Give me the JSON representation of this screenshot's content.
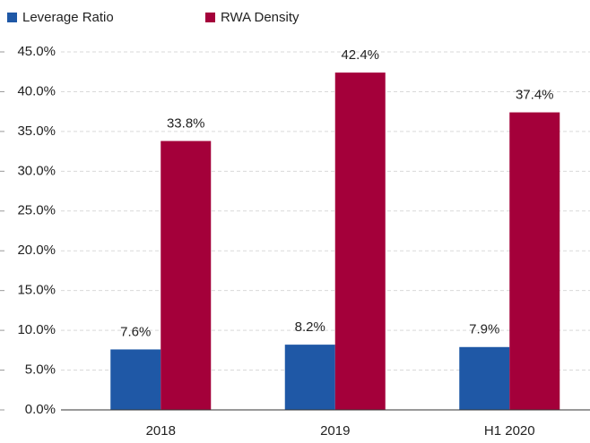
{
  "chart_data": {
    "type": "bar",
    "categories": [
      "2018",
      "2019",
      "H1 2020"
    ],
    "series": [
      {
        "name": "Leverage Ratio",
        "color": "#1f58a6",
        "values": [
          7.6,
          8.2,
          7.9
        ],
        "value_labels": [
          "7.6%",
          "8.2%",
          "7.9%"
        ]
      },
      {
        "name": "RWA Density",
        "color": "#a4003a",
        "values": [
          33.8,
          42.4,
          37.4
        ],
        "value_labels": [
          "33.8%",
          "42.4%",
          "37.4%"
        ]
      }
    ],
    "ylim": [
      0,
      45
    ],
    "yticks": [
      {
        "value": 0,
        "label": "0.0%"
      },
      {
        "value": 5,
        "label": "5.0%"
      },
      {
        "value": 10,
        "label": "10.0%"
      },
      {
        "value": 15,
        "label": "15.0%"
      },
      {
        "value": 20,
        "label": "20.0%"
      },
      {
        "value": 25,
        "label": "25.0%"
      },
      {
        "value": 30,
        "label": "30.0%"
      },
      {
        "value": 35,
        "label": "35.0%"
      },
      {
        "value": 40,
        "label": "40.0%"
      },
      {
        "value": 45,
        "label": "45.0%"
      }
    ],
    "grid": true,
    "legend": "top-left"
  }
}
